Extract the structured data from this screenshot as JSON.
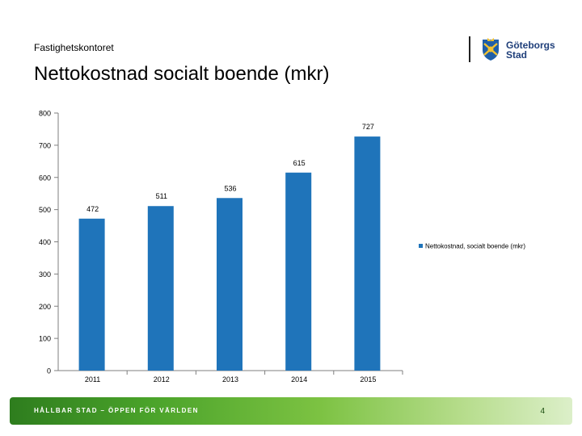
{
  "header": {
    "department": "Fastighetskontoret",
    "title": "Nettokostnad socialt boende (mkr)",
    "logo_line1": "Göteborgs",
    "logo_line2": "Stad"
  },
  "footer": {
    "slogan": "HÅLLBAR STAD – ÖPPEN FÖR VÄRLDEN",
    "page_number": "4"
  },
  "colors": {
    "bar": "#1F74BA",
    "axis": "#7f7f7f",
    "text": "#000000"
  },
  "chart_data": {
    "type": "bar",
    "title": "",
    "categories": [
      "2011",
      "2012",
      "2013",
      "2014",
      "2015"
    ],
    "series": [
      {
        "name": "Nettokostnad, socialt boende (mkr)",
        "values": [
          472,
          511,
          536,
          615,
          727
        ]
      }
    ],
    "ylim": [
      0,
      800
    ],
    "yticks": [
      0,
      100,
      200,
      300,
      400,
      500,
      600,
      700,
      800
    ],
    "xlabel": "",
    "ylabel": "",
    "grid": false,
    "legend_position": "right"
  }
}
